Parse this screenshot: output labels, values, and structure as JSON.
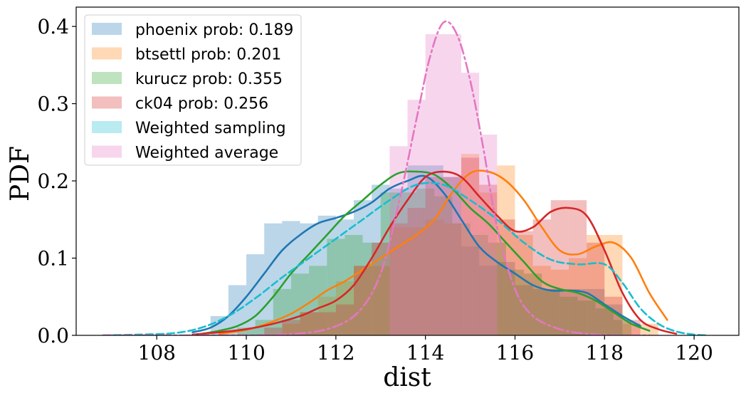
{
  "chart_data": {
    "type": "histogram+kde",
    "xlabel": "dist",
    "ylabel": "PDF",
    "xlim": [
      106.2,
      121.0
    ],
    "ylim": [
      0.0,
      0.425
    ],
    "xticks": [
      108,
      110,
      112,
      114,
      116,
      118,
      120
    ],
    "yticks": [
      0.0,
      0.1,
      0.2,
      0.3,
      0.4
    ],
    "xtick_labels": [
      "108",
      "110",
      "112",
      "114",
      "116",
      "118",
      "120"
    ],
    "ytick_labels": [
      "0.0",
      "0.1",
      "0.2",
      "0.3",
      "0.4"
    ],
    "legend_position": "top-left",
    "series": [
      {
        "name": "phoenix prob: 0.189",
        "color": "#1f77b4",
        "line_style": "solid",
        "hist_edges": [
          109.2,
          109.6,
          110.0,
          110.4,
          110.8,
          111.2,
          111.6,
          112.0,
          112.4,
          112.8,
          113.2,
          113.6,
          114.0,
          114.4,
          114.8,
          115.2,
          115.6,
          116.0,
          116.4,
          116.8,
          117.2,
          117.6,
          118.0,
          118.4
        ],
        "hist_heights": [
          0.025,
          0.065,
          0.105,
          0.145,
          0.148,
          0.145,
          0.155,
          0.15,
          0.175,
          0.195,
          0.19,
          0.22,
          0.22,
          0.205,
          0.115,
          0.09,
          0.095,
          0.065,
          0.06,
          0.06,
          0.06,
          0.06,
          0.04
        ],
        "kde_x": [
          108.8,
          109.2,
          109.6,
          110.0,
          110.4,
          110.8,
          111.2,
          111.6,
          112.0,
          112.4,
          112.8,
          113.2,
          113.6,
          114.0,
          114.4,
          114.8,
          115.2,
          115.6,
          116.0,
          116.4,
          116.8,
          117.2,
          117.6,
          118.0,
          118.4,
          118.8
        ],
        "kde_y": [
          0.004,
          0.01,
          0.025,
          0.05,
          0.08,
          0.11,
          0.13,
          0.145,
          0.152,
          0.16,
          0.172,
          0.19,
          0.2,
          0.206,
          0.185,
          0.15,
          0.115,
          0.095,
          0.08,
          0.065,
          0.058,
          0.058,
          0.055,
          0.04,
          0.025,
          0.012
        ]
      },
      {
        "name": "btsettl prob: 0.201",
        "color": "#ff7f0e",
        "line_style": "solid",
        "hist_edges": [
          110.8,
          111.2,
          111.6,
          112.0,
          112.4,
          112.8,
          113.2,
          113.6,
          114.0,
          114.4,
          114.8,
          115.2,
          115.6,
          116.0,
          116.4,
          116.8,
          117.2,
          117.6,
          118.0,
          118.4,
          118.8,
          119.2
        ],
        "hist_heights": [
          0.015,
          0.03,
          0.05,
          0.07,
          0.09,
          0.09,
          0.14,
          0.14,
          0.15,
          0.145,
          0.235,
          0.185,
          0.22,
          0.13,
          0.09,
          0.085,
          0.1,
          0.13,
          0.13,
          0.015,
          0.015
        ],
        "kde_x": [
          109.4,
          109.8,
          110.2,
          110.6,
          111.0,
          111.4,
          111.8,
          112.2,
          112.6,
          113.0,
          113.4,
          113.8,
          114.2,
          114.6,
          115.0,
          115.4,
          115.8,
          116.2,
          116.6,
          117.0,
          117.4,
          117.8,
          118.2,
          118.6,
          119.0,
          119.4
        ],
        "kde_y": [
          0.002,
          0.005,
          0.01,
          0.018,
          0.028,
          0.042,
          0.058,
          0.07,
          0.085,
          0.1,
          0.115,
          0.13,
          0.15,
          0.185,
          0.21,
          0.212,
          0.2,
          0.175,
          0.14,
          0.11,
          0.105,
          0.115,
          0.12,
          0.1,
          0.055,
          0.02
        ]
      },
      {
        "name": "kurucz prob: 0.355",
        "color": "#2ca02c",
        "line_style": "solid",
        "hist_edges": [
          109.8,
          110.2,
          110.6,
          111.0,
          111.4,
          111.8,
          112.2,
          112.6,
          113.0,
          113.4,
          113.8,
          114.2,
          114.6,
          115.0,
          115.4,
          115.8,
          116.2,
          116.6,
          117.0,
          117.4,
          117.8,
          118.2,
          118.6
        ],
        "hist_heights": [
          0.01,
          0.02,
          0.06,
          0.08,
          0.09,
          0.125,
          0.13,
          0.12,
          0.185,
          0.185,
          0.19,
          0.18,
          0.145,
          0.13,
          0.12,
          0.085,
          0.08,
          0.06,
          0.05,
          0.045,
          0.035,
          0.02
        ],
        "kde_x": [
          109.0,
          109.4,
          109.8,
          110.2,
          110.6,
          111.0,
          111.4,
          111.8,
          112.2,
          112.6,
          113.0,
          113.4,
          113.8,
          114.2,
          114.6,
          115.0,
          115.4,
          115.8,
          116.2,
          116.6,
          117.0,
          117.4,
          117.8,
          118.2,
          118.6,
          119.0
        ],
        "kde_y": [
          0.002,
          0.006,
          0.012,
          0.025,
          0.05,
          0.08,
          0.105,
          0.13,
          0.155,
          0.175,
          0.195,
          0.21,
          0.212,
          0.208,
          0.19,
          0.165,
          0.145,
          0.12,
          0.095,
          0.07,
          0.06,
          0.055,
          0.045,
          0.03,
          0.015,
          0.006
        ]
      },
      {
        "name": "ck04 prob: 0.256",
        "color": "#d62728",
        "line_style": "solid",
        "hist_edges": [
          110.4,
          110.8,
          111.2,
          111.6,
          112.0,
          112.4,
          112.8,
          113.2,
          113.6,
          114.0,
          114.4,
          114.8,
          115.2,
          115.6,
          116.0,
          116.4,
          116.8,
          117.2,
          117.6,
          118.0,
          118.4,
          118.8
        ],
        "hist_heights": [
          0.01,
          0.02,
          0.03,
          0.03,
          0.04,
          0.09,
          0.12,
          0.145,
          0.165,
          0.205,
          0.205,
          0.23,
          0.195,
          0.15,
          0.135,
          0.15,
          0.175,
          0.175,
          0.12,
          0.05,
          0.02
        ],
        "kde_x": [
          108.8,
          109.4,
          110.0,
          110.6,
          111.2,
          111.6,
          112.0,
          112.4,
          112.8,
          113.2,
          113.6,
          114.0,
          114.4,
          114.8,
          115.2,
          115.6,
          116.0,
          116.4,
          116.8,
          117.2,
          117.6,
          118.0,
          118.4,
          118.8,
          119.2,
          119.6
        ],
        "kde_y": [
          0.001,
          0.004,
          0.008,
          0.015,
          0.025,
          0.035,
          0.045,
          0.065,
          0.1,
          0.14,
          0.175,
          0.205,
          0.212,
          0.205,
          0.18,
          0.155,
          0.135,
          0.14,
          0.16,
          0.165,
          0.155,
          0.11,
          0.055,
          0.02,
          0.008,
          0.002
        ]
      },
      {
        "name": "Weighted sampling",
        "color": "#17becf",
        "line_style": "dashed",
        "kde_x": [
          106.8,
          107.6,
          108.4,
          109.0,
          109.6,
          110.2,
          110.8,
          111.4,
          112.0,
          112.6,
          113.2,
          113.8,
          114.4,
          115.0,
          115.6,
          116.2,
          116.8,
          117.4,
          118.0,
          118.4,
          118.8,
          119.2,
          119.6,
          120.0,
          120.3
        ],
        "kde_y": [
          0.0,
          0.001,
          0.003,
          0.01,
          0.025,
          0.048,
          0.075,
          0.1,
          0.125,
          0.15,
          0.175,
          0.195,
          0.195,
          0.175,
          0.15,
          0.12,
          0.098,
          0.092,
          0.092,
          0.068,
          0.035,
          0.015,
          0.005,
          0.001,
          0.0
        ]
      },
      {
        "name": "Weighted average",
        "color": "#e377c2",
        "line_style": "dashdot",
        "hist_edges": [
          113.2,
          113.6,
          114.0,
          114.4,
          114.8,
          115.2,
          115.6
        ],
        "hist_heights": [
          0.245,
          0.305,
          0.39,
          0.39,
          0.34,
          0.26
        ],
        "kde_x": [
          106.8,
          108.0,
          109.5,
          110.8,
          111.8,
          112.5,
          113.0,
          113.4,
          113.8,
          114.1,
          114.4,
          114.7,
          115.0,
          115.3,
          115.6,
          116.0,
          116.4,
          117.0,
          117.6,
          118.2,
          119.0
        ],
        "kde_y": [
          0.0,
          0.0,
          0.0,
          0.001,
          0.008,
          0.03,
          0.08,
          0.17,
          0.28,
          0.36,
          0.405,
          0.39,
          0.33,
          0.24,
          0.14,
          0.06,
          0.025,
          0.008,
          0.002,
          0.0,
          0.0
        ]
      }
    ]
  }
}
